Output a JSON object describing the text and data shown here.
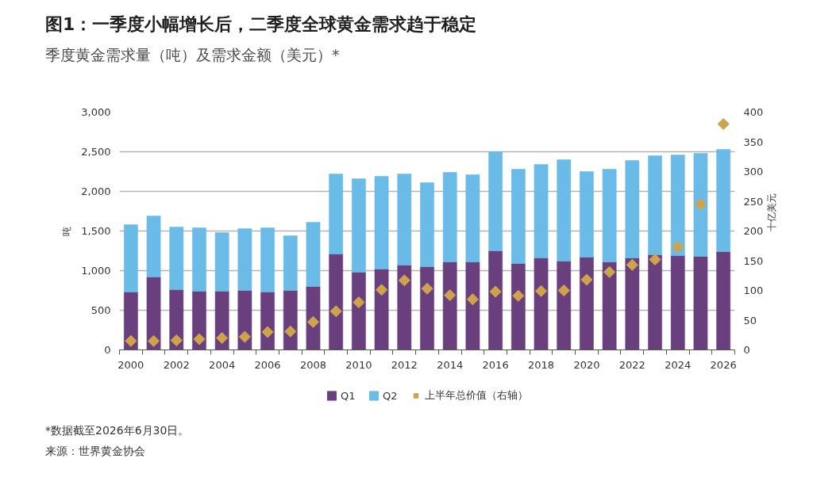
{
  "chart_data": {
    "type": "bar",
    "stacked": true,
    "title": "图1：一季度小幅增长后，二季度全球黄金需求趋于稳定",
    "subtitle": "季度黄金需求量（吨）及需求金额（美元）*",
    "ylabel": "吨",
    "y2label": "十亿美元",
    "annotations": [
      "*数据截至2026年6月30日。",
      "来源：世界黄金协会"
    ],
    "x": [
      2000,
      2001,
      2002,
      2003,
      2004,
      2005,
      2006,
      2007,
      2008,
      2009,
      2010,
      2011,
      2012,
      2013,
      2014,
      2015,
      2016,
      2017,
      2018,
      2019,
      2020,
      2021,
      2022,
      2023,
      2024,
      2025,
      2026
    ],
    "xlim": [
      1999.5,
      2026.5
    ],
    "xticks": [
      2000,
      2002,
      2004,
      2006,
      2008,
      2010,
      2012,
      2014,
      2016,
      2018,
      2020,
      2022,
      2024,
      2026
    ],
    "ylim": [
      0,
      3000
    ],
    "yticks": [
      0,
      500,
      {
        "value": 1000,
        "label": "1,000"
      },
      {
        "value": 1500,
        "label": "1,500"
      },
      {
        "value": 2000,
        "label": "2,000"
      },
      {
        "value": 2500,
        "label": "2,500"
      },
      {
        "value": 3000,
        "label": "3,000"
      }
    ],
    "y2lim": [
      0,
      400
    ],
    "y2ticks": [
      0,
      50,
      100,
      150,
      200,
      250,
      300,
      350,
      400
    ],
    "grid": "y",
    "legend": "bottom",
    "series": [
      {
        "name": "Q1",
        "color": "#693f7e",
        "values": [
          730,
          920,
          760,
          740,
          740,
          750,
          730,
          750,
          800,
          1210,
          980,
          1020,
          1070,
          1050,
          1110,
          1110,
          1250,
          1090,
          1160,
          1120,
          1170,
          1110,
          1160,
          1200,
          1190,
          1180,
          1240
        ]
      },
      {
        "name": "Q2",
        "color": "#6bbbe8",
        "values": [
          850,
          770,
          790,
          800,
          740,
          780,
          810,
          690,
          810,
          1010,
          1180,
          1170,
          1150,
          1060,
          1130,
          1100,
          1250,
          1190,
          1180,
          1280,
          1080,
          1170,
          1230,
          1250,
          1270,
          1300,
          1290
        ]
      },
      {
        "name": "上半年总价值（右轴）",
        "type": "scatter",
        "axis": "y2",
        "marker": "diamond",
        "color": "#cda44c",
        "values": [
          15,
          15,
          16,
          18,
          20,
          22,
          30,
          31,
          47,
          65,
          80,
          101,
          117,
          103,
          92,
          85,
          98,
          91,
          99,
          100,
          118,
          131,
          143,
          152,
          173,
          245,
          380
        ]
      }
    ]
  }
}
